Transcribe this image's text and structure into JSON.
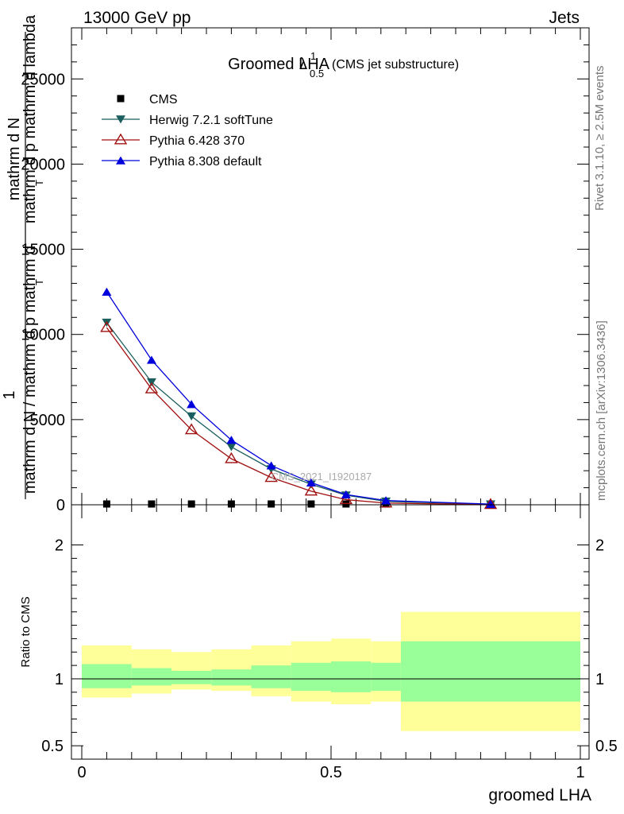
{
  "header": {
    "energy_label": "13000 GeV pp",
    "category_label": "Jets"
  },
  "side_labels": {
    "rivet": "Rivet 3.1.10, ≥ 2.5M events",
    "mcplots": "mcplots.cern.ch [arXiv:1306.3436]"
  },
  "watermark": "CMS_2021_I1920187",
  "colors": {
    "herwig": "#1b5e5e",
    "pythia6": "#a01010",
    "pythia8": "#0000dd",
    "cms": "#000000",
    "band_outer": "#ffff99",
    "band_inner": "#99ff99"
  },
  "chart_data": [
    {
      "type": "line",
      "title": "Groomed LHA",
      "title_symbol": "λ",
      "title_sup": "1",
      "title_sub": "0.5",
      "title_note": "(CMS jet substructure)",
      "ylabel_top": "1",
      "ylabel_num": "mathrm dN / mathrm d p_T",
      "ylabel_den": "mathrm d^2N / mathrm d p_T mathrm d lambda",
      "ylabel_lines": [
        "mathrm d N",
        "mathrm d p  mathrm d lambda",
        "T",
        "mathrm d N / mathrm d p  mathrm d",
        "T"
      ],
      "xlim": [
        0,
        1
      ],
      "ylim": [
        0,
        28000
      ],
      "yticks": [
        0,
        5000,
        10000,
        15000,
        20000,
        25000
      ],
      "ytick_labels": [
        "0",
        "5000",
        "10000",
        "15000",
        "20000",
        "25000"
      ],
      "legend": [
        "CMS",
        "Herwig 7.2.1 softTune",
        "Pythia 6.428 370",
        "Pythia 8.308 default"
      ],
      "legend_position": "top-left",
      "series": [
        {
          "name": "CMS",
          "marker": "square",
          "x": [
            0.05,
            0.14,
            0.22,
            0.3,
            0.38,
            0.46,
            0.53,
            0.61,
            0.82
          ],
          "values": [
            0,
            0,
            0,
            0,
            0,
            0,
            0,
            0,
            0
          ]
        },
        {
          "name": "Herwig 7.2.1 softTune",
          "marker": "triangle-down",
          "x": [
            0.05,
            0.14,
            0.22,
            0.3,
            0.38,
            0.46,
            0.53,
            0.61,
            0.82
          ],
          "values": [
            10700,
            7200,
            5200,
            3400,
            2100,
            1200,
            560,
            200,
            30
          ]
        },
        {
          "name": "Pythia 6.428 370",
          "marker": "triangle-open",
          "x": [
            0.05,
            0.14,
            0.22,
            0.3,
            0.38,
            0.46,
            0.53,
            0.61,
            0.82
          ],
          "values": [
            10400,
            6800,
            4400,
            2700,
            1600,
            800,
            300,
            100,
            10
          ]
        },
        {
          "name": "Pythia 8.308 default",
          "marker": "triangle-up",
          "x": [
            0.05,
            0.14,
            0.22,
            0.3,
            0.38,
            0.46,
            0.53,
            0.61,
            0.82
          ],
          "values": [
            12500,
            8500,
            5900,
            3800,
            2300,
            1300,
            600,
            250,
            40
          ]
        }
      ]
    },
    {
      "type": "area",
      "ylabel": "Ratio to CMS",
      "xlabel": "groomed LHA",
      "xlim": [
        0,
        1
      ],
      "ylim": [
        0.4,
        2.3
      ],
      "xticks": [
        0,
        0.5,
        1
      ],
      "xtick_labels": [
        "0",
        "0.5",
        "1"
      ],
      "yticks": [
        0.5,
        1,
        2
      ],
      "ytick_labels": [
        "0.5",
        "1",
        "2"
      ],
      "bins": [
        {
          "x0": 0.0,
          "x1": 0.1,
          "outer": [
            0.86,
            1.25
          ],
          "inner": [
            0.93,
            1.11
          ]
        },
        {
          "x0": 0.1,
          "x1": 0.18,
          "outer": [
            0.89,
            1.22
          ],
          "inner": [
            0.95,
            1.08
          ]
        },
        {
          "x0": 0.18,
          "x1": 0.26,
          "outer": [
            0.92,
            1.2
          ],
          "inner": [
            0.96,
            1.06
          ]
        },
        {
          "x0": 0.26,
          "x1": 0.34,
          "outer": [
            0.91,
            1.22
          ],
          "inner": [
            0.95,
            1.07
          ]
        },
        {
          "x0": 0.34,
          "x1": 0.42,
          "outer": [
            0.87,
            1.25
          ],
          "inner": [
            0.93,
            1.1
          ]
        },
        {
          "x0": 0.42,
          "x1": 0.5,
          "outer": [
            0.83,
            1.28
          ],
          "inner": [
            0.91,
            1.12
          ]
        },
        {
          "x0": 0.5,
          "x1": 0.58,
          "outer": [
            0.81,
            1.3
          ],
          "inner": [
            0.9,
            1.13
          ]
        },
        {
          "x0": 0.58,
          "x1": 0.64,
          "outer": [
            0.83,
            1.28
          ],
          "inner": [
            0.91,
            1.12
          ]
        },
        {
          "x0": 0.64,
          "x1": 1.0,
          "outer": [
            0.61,
            1.5
          ],
          "inner": [
            0.83,
            1.28
          ]
        }
      ],
      "reference": 1
    }
  ]
}
